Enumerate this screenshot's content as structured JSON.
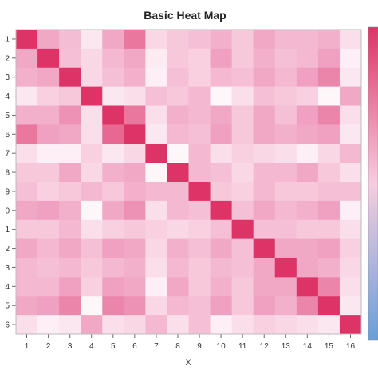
{
  "chart_data": {
    "type": "heatmap",
    "title": "Basic Heat Map",
    "xlabel": "X",
    "ylabel": "",
    "x_categories": [
      "1",
      "2",
      "3",
      "4",
      "5",
      "6",
      "7",
      "8",
      "9",
      "10",
      "11",
      "12",
      "13",
      "14",
      "15",
      "16"
    ],
    "y_categories": [
      "1",
      "2",
      "3",
      "4",
      "5",
      "6",
      "7",
      "8",
      "9",
      "0",
      "1",
      "2",
      "3",
      "4",
      "5",
      "6"
    ],
    "value_range": [
      0,
      1
    ],
    "colors": {
      "low": "#ffffff",
      "mid": "#f0a0c0",
      "high": "#dd3366",
      "colorbar_low": "#6a9fd8",
      "colorbar_high": "#dd3366"
    },
    "values": [
      [
        1.0,
        0.55,
        0.42,
        0.15,
        0.55,
        0.75,
        0.25,
        0.35,
        0.4,
        0.5,
        0.35,
        0.55,
        0.45,
        0.45,
        0.5,
        0.2
      ],
      [
        0.55,
        1.0,
        0.4,
        0.25,
        0.45,
        0.55,
        0.12,
        0.35,
        0.3,
        0.6,
        0.35,
        0.5,
        0.4,
        0.45,
        0.6,
        0.1
      ],
      [
        0.5,
        0.55,
        1.0,
        0.25,
        0.4,
        0.5,
        0.1,
        0.4,
        0.3,
        0.45,
        0.4,
        0.55,
        0.45,
        0.6,
        0.7,
        0.15
      ],
      [
        0.15,
        0.3,
        0.35,
        1.0,
        0.15,
        0.2,
        0.4,
        0.35,
        0.45,
        0.05,
        0.2,
        0.4,
        0.35,
        0.3,
        0.05,
        0.55
      ],
      [
        0.5,
        0.5,
        0.65,
        0.2,
        1.0,
        0.75,
        0.2,
        0.5,
        0.45,
        0.55,
        0.35,
        0.55,
        0.4,
        0.6,
        0.7,
        0.2
      ],
      [
        0.75,
        0.6,
        0.55,
        0.2,
        0.8,
        1.0,
        0.15,
        0.45,
        0.4,
        0.6,
        0.35,
        0.55,
        0.5,
        0.55,
        0.6,
        0.15
      ],
      [
        0.2,
        0.1,
        0.1,
        0.3,
        0.15,
        0.25,
        1.0,
        0.05,
        0.45,
        0.2,
        0.3,
        0.25,
        0.2,
        0.1,
        0.25,
        0.45
      ],
      [
        0.35,
        0.35,
        0.55,
        0.25,
        0.5,
        0.55,
        0.05,
        1.0,
        0.45,
        0.4,
        0.25,
        0.45,
        0.45,
        0.55,
        0.35,
        0.2
      ],
      [
        0.4,
        0.3,
        0.35,
        0.45,
        0.35,
        0.5,
        0.45,
        0.45,
        1.0,
        0.35,
        0.3,
        0.45,
        0.35,
        0.35,
        0.4,
        0.4
      ],
      [
        0.55,
        0.6,
        0.5,
        0.05,
        0.55,
        0.65,
        0.2,
        0.45,
        0.4,
        1.0,
        0.4,
        0.55,
        0.45,
        0.5,
        0.6,
        0.1
      ],
      [
        0.35,
        0.35,
        0.45,
        0.2,
        0.3,
        0.35,
        0.3,
        0.25,
        0.3,
        0.4,
        1.0,
        0.4,
        0.4,
        0.35,
        0.35,
        0.2
      ],
      [
        0.55,
        0.45,
        0.55,
        0.4,
        0.6,
        0.55,
        0.25,
        0.5,
        0.4,
        0.55,
        0.4,
        1.0,
        0.55,
        0.55,
        0.6,
        0.3
      ],
      [
        0.45,
        0.4,
        0.45,
        0.35,
        0.45,
        0.5,
        0.2,
        0.45,
        0.35,
        0.45,
        0.4,
        0.55,
        1.0,
        0.55,
        0.5,
        0.25
      ],
      [
        0.45,
        0.45,
        0.6,
        0.3,
        0.6,
        0.55,
        0.1,
        0.55,
        0.35,
        0.5,
        0.35,
        0.55,
        0.55,
        1.0,
        0.7,
        0.2
      ],
      [
        0.55,
        0.6,
        0.7,
        0.05,
        0.7,
        0.65,
        0.25,
        0.45,
        0.4,
        0.6,
        0.35,
        0.6,
        0.5,
        0.7,
        1.0,
        0.15
      ],
      [
        0.2,
        0.1,
        0.15,
        0.55,
        0.2,
        0.25,
        0.45,
        0.2,
        0.4,
        0.1,
        0.2,
        0.3,
        0.25,
        0.2,
        0.15,
        1.0
      ]
    ]
  }
}
